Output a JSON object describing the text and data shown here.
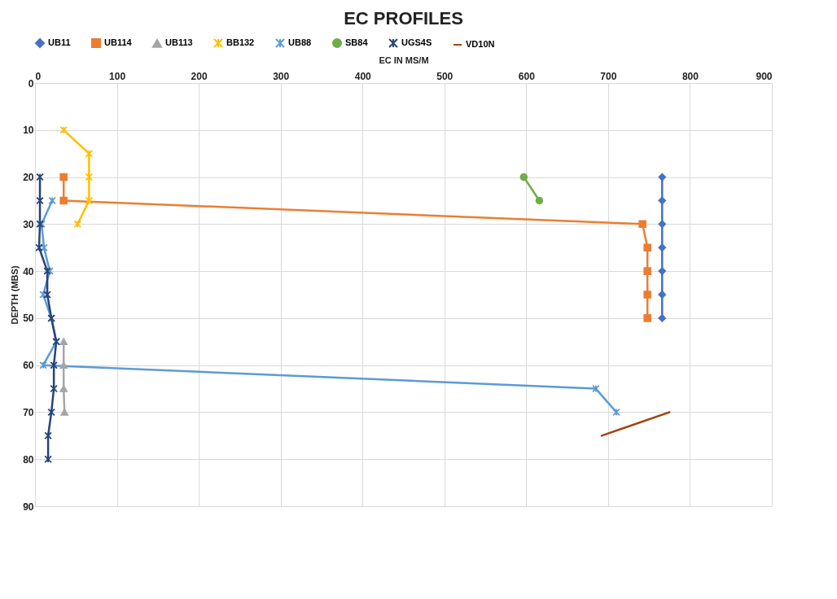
{
  "chart_data": {
    "type": "line",
    "title": "EC PROFILES",
    "xlabel": "EC IN MS/M",
    "ylabel": "DEPTH (MBS)",
    "xlim": [
      0,
      900
    ],
    "xticks": [
      0,
      100,
      200,
      300,
      400,
      500,
      600,
      700,
      800,
      900
    ],
    "ylim": [
      90,
      0
    ],
    "yticks": [
      0,
      10,
      20,
      30,
      40,
      50,
      60,
      70,
      80,
      90
    ],
    "grid": true,
    "legend": "top",
    "series": [
      {
        "name": "UB11",
        "color": "#4472c4",
        "marker": "diamond",
        "x": [
          766,
          766,
          766,
          766,
          766,
          766,
          766
        ],
        "values": [
          20,
          25,
          30,
          35,
          40,
          45,
          50
        ]
      },
      {
        "name": "UB114",
        "color": "#ed7d31",
        "marker": "square",
        "x": [
          35,
          35,
          742,
          748,
          748,
          748,
          748
        ],
        "values": [
          20,
          25,
          30,
          35,
          40,
          45,
          50
        ]
      },
      {
        "name": "UB113",
        "color": "#a5a5a5",
        "marker": "triangle",
        "x": [
          35,
          35,
          35,
          36
        ],
        "values": [
          55,
          60,
          65,
          70
        ]
      },
      {
        "name": "BB132",
        "color": "#ffc000",
        "marker": "cross",
        "x": [
          35,
          66,
          66,
          66,
          52
        ],
        "values": [
          10,
          15,
          20,
          25,
          30
        ]
      },
      {
        "name": "UB88",
        "color": "#5b9bd5",
        "marker": "cross",
        "x": [
          21,
          8,
          11,
          18,
          10,
          20,
          26,
          10,
          685,
          710
        ],
        "values": [
          25,
          30,
          35,
          40,
          45,
          50,
          55,
          60,
          65,
          70
        ]
      },
      {
        "name": "SB84",
        "color": "#70ad47",
        "marker": "circle",
        "x": [
          597,
          616
        ],
        "values": [
          20,
          25
        ]
      },
      {
        "name": "UGS4S",
        "color": "#264478",
        "marker": "cross",
        "x": [
          6,
          6,
          6,
          5,
          15,
          15,
          20,
          26,
          23,
          23,
          20,
          16,
          16
        ],
        "values": [
          20,
          25,
          30,
          35,
          40,
          45,
          50,
          55,
          60,
          65,
          70,
          75,
          80
        ]
      },
      {
        "name": "VD10N",
        "color": "#9e480e",
        "marker": "none",
        "x": [
          775,
          692
        ],
        "values": [
          70,
          75
        ]
      }
    ]
  }
}
